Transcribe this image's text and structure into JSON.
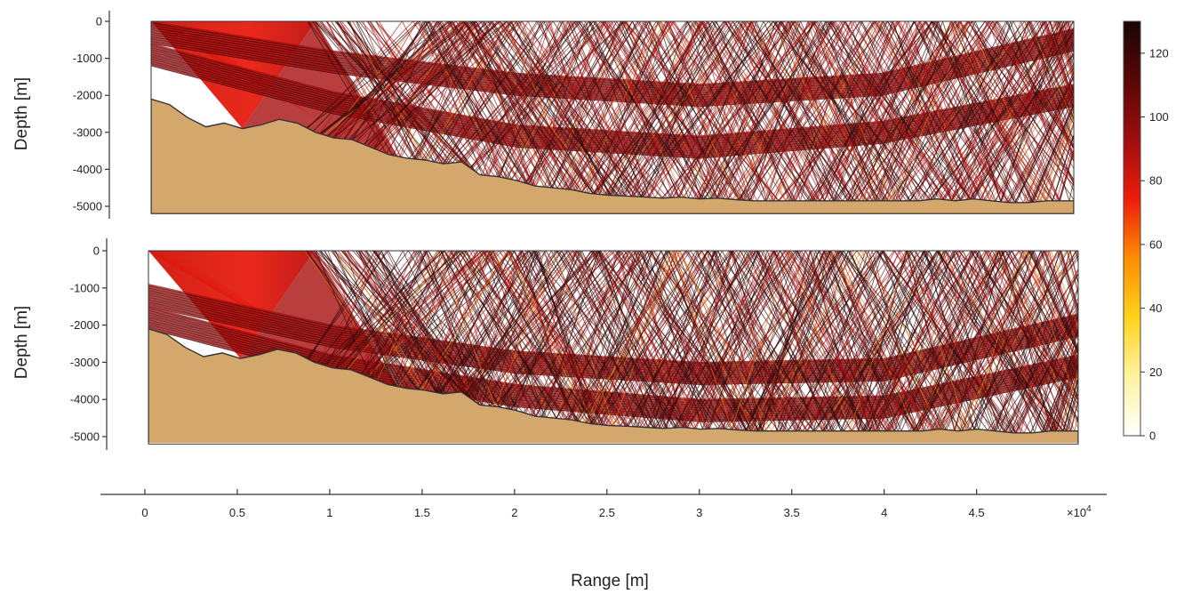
{
  "chart_data": [
    {
      "type": "ray-trace",
      "ylabel": "Depth [m]",
      "yticks": [
        0,
        -1000,
        -2000,
        -3000,
        -4000,
        -5000
      ],
      "ylim": [
        -5200,
        0
      ],
      "xlim": [
        0,
        50500
      ],
      "source": {
        "range": 0,
        "depth": 0
      },
      "seabed_depth_profile": {
        "range": [
          0,
          1000,
          2000,
          3000,
          4000,
          5000,
          6000,
          7000,
          8000,
          9000,
          10000,
          11000,
          12000,
          13000,
          14000,
          15000,
          16000,
          17000,
          18000,
          19000,
          20000,
          21000,
          22000,
          23000,
          24000,
          25000,
          26000,
          27000,
          28000,
          29000,
          30000,
          31000,
          32000,
          33000,
          34000,
          35000,
          36000,
          37000,
          38000,
          39000,
          40000,
          41000,
          42000,
          43000,
          44000,
          45000,
          46000,
          47000,
          48000,
          49000,
          50500
        ],
        "depth": [
          -2100,
          -2250,
          -2600,
          -2850,
          -2750,
          -2900,
          -2800,
          -2650,
          -2750,
          -3000,
          -3150,
          -3200,
          -3400,
          -3600,
          -3700,
          -3750,
          -3850,
          -3800,
          -4150,
          -4200,
          -4300,
          -4450,
          -4500,
          -4550,
          -4650,
          -4700,
          -4720,
          -4750,
          -4780,
          -4750,
          -4800,
          -4780,
          -4820,
          -4850,
          -4850,
          -4850,
          -4850,
          -4850,
          -4850,
          -4850,
          -4850,
          -4850,
          -4850,
          -4800,
          -4850,
          -4800,
          -4850,
          -4900,
          -4900,
          -4850,
          -4850
        ]
      },
      "ray_beams": [
        {
          "name": "upper",
          "shape": "arc",
          "range": [
            0,
            10000,
            20000,
            30000,
            40000,
            50500
          ],
          "depth": [
            -300,
            -1100,
            -1700,
            -2000,
            -1700,
            -500
          ],
          "color_value": 110
        },
        {
          "name": "lower",
          "shape": "arc",
          "range": [
            0,
            10000,
            20000,
            30000,
            40000,
            50500
          ],
          "depth": [
            -900,
            -2200,
            -3100,
            -3400,
            -3000,
            -2000
          ],
          "color_value": 105
        }
      ]
    },
    {
      "type": "ray-trace",
      "ylabel": "Depth [m]",
      "yticks": [
        0,
        -1000,
        -2000,
        -3000,
        -4000,
        -5000
      ],
      "ylim": [
        -5200,
        0
      ],
      "xlim": [
        0,
        50500
      ],
      "source": {
        "range": 0,
        "depth": 0
      },
      "seabed_depth_profile": {
        "range": [
          0,
          1000,
          2000,
          3000,
          4000,
          5000,
          6000,
          7000,
          8000,
          9000,
          10000,
          11000,
          12000,
          13000,
          14000,
          15000,
          16000,
          17000,
          18000,
          19000,
          20000,
          21000,
          22000,
          23000,
          24000,
          25000,
          26000,
          27000,
          28000,
          29000,
          30000,
          31000,
          32000,
          33000,
          34000,
          35000,
          36000,
          37000,
          38000,
          39000,
          40000,
          41000,
          42000,
          43000,
          44000,
          45000,
          46000,
          47000,
          48000,
          49000,
          50500
        ],
        "depth": [
          -2100,
          -2250,
          -2600,
          -2850,
          -2750,
          -2900,
          -2800,
          -2650,
          -2750,
          -3000,
          -3150,
          -3200,
          -3400,
          -3600,
          -3700,
          -3750,
          -3850,
          -3800,
          -4150,
          -4200,
          -4300,
          -4450,
          -4500,
          -4550,
          -4650,
          -4700,
          -4720,
          -4750,
          -4780,
          -4750,
          -4800,
          -4780,
          -4820,
          -4850,
          -4850,
          -4850,
          -4850,
          -4850,
          -4850,
          -4850,
          -4850,
          -4850,
          -4850,
          -4800,
          -4850,
          -4800,
          -4850,
          -4900,
          -4900,
          -4850,
          -4850
        ]
      },
      "ray_beams": [
        {
          "name": "upper",
          "shape": "arc",
          "range": [
            0,
            10000,
            20000,
            30000,
            40000,
            50500
          ],
          "depth": [
            -1200,
            -2300,
            -3000,
            -3300,
            -3200,
            -2000
          ],
          "color_value": 110
        },
        {
          "name": "lower",
          "shape": "arc",
          "range": [
            0,
            10000,
            20000,
            30000,
            40000,
            50500
          ],
          "depth": [
            -1800,
            -3100,
            -3900,
            -4300,
            -4200,
            -3100
          ],
          "color_value": 105
        }
      ]
    }
  ],
  "x_axis": {
    "label": "Range [m]",
    "ticks": [
      0,
      5000,
      10000,
      15000,
      20000,
      25000,
      30000,
      35000,
      40000,
      45000
    ],
    "tick_labels": [
      "0",
      "0.5",
      "1",
      "1.5",
      "2",
      "2.5",
      "3",
      "3.5",
      "4",
      "4.5"
    ],
    "exponent_base": "×10",
    "exponent_power": "4"
  },
  "colorbar": {
    "ticks": [
      0,
      20,
      40,
      60,
      80,
      100,
      120
    ],
    "tick_labels": [
      "0",
      "20",
      "40",
      "60",
      "80",
      "100",
      "120"
    ],
    "range": [
      0,
      130
    ],
    "colormap": "hot-reversed",
    "stops": [
      "#ffffff",
      "#fff3a0",
      "#ffd21a",
      "#ff8c00",
      "#ee1c0c",
      "#a00d0d",
      "#5a0606",
      "#1a0505"
    ]
  },
  "colors": {
    "seabed_fill": "#d4a86c",
    "seabed_edge": "#333333",
    "ray_dark": "#2a0505",
    "ray_red": "#a80f0f",
    "ray_bright": "#e0180c"
  }
}
